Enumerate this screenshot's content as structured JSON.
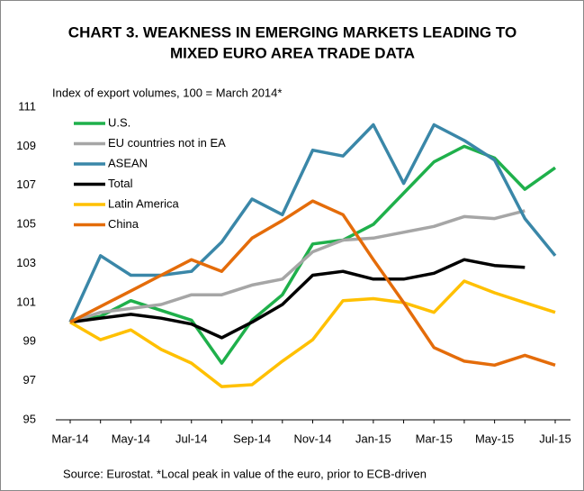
{
  "chart_data": {
    "type": "line",
    "title": [
      "CHART 3. WEAKNESS IN EMERGING MARKETS LEADING TO",
      "MIXED EURO AREA TRADE DATA"
    ],
    "subtitle": "Index of export volumes, 100 = March 2014*",
    "source": "Source: Eurostat. *Local peak in value of the euro, prior to ECB-driven",
    "categories": [
      "Mar-14",
      null,
      "May-14",
      null,
      "Jul-14",
      null,
      "Sep-14",
      null,
      "Nov-14",
      null,
      "Jan-15",
      null,
      "Mar-15",
      null,
      "May-15",
      null,
      "Jul-15"
    ],
    "ylim": [
      95,
      111
    ],
    "yticks": [
      95,
      97,
      99,
      101,
      103,
      105,
      107,
      109,
      111
    ],
    "legend": "top-left",
    "series": [
      {
        "name": "U.S.",
        "color": "#1fb04b",
        "values": [
          100,
          100.3,
          101.1,
          100.6,
          100.1,
          97.9,
          100.1,
          101.4,
          104.0,
          104.2,
          105.0,
          106.6,
          108.2,
          109.0,
          108.4,
          106.8,
          107.9
        ]
      },
      {
        "name": "EU countries not in EA",
        "color": "#a6a6a6",
        "values": [
          100,
          100.5,
          100.7,
          100.9,
          101.4,
          101.4,
          101.9,
          102.2,
          103.6,
          104.2,
          104.3,
          104.6,
          104.9,
          105.4,
          105.3,
          105.7,
          null
        ]
      },
      {
        "name": "ASEAN",
        "color": "#3a87a8",
        "values": [
          100,
          103.4,
          102.4,
          102.4,
          102.6,
          104.1,
          106.3,
          105.5,
          108.8,
          108.5,
          110.1,
          107.1,
          110.1,
          109.3,
          108.3,
          105.3,
          103.4
        ]
      },
      {
        "name": "Total",
        "color": "#000000",
        "values": [
          100,
          100.2,
          100.4,
          100.2,
          99.9,
          99.2,
          100.0,
          100.9,
          102.4,
          102.6,
          102.2,
          102.2,
          102.5,
          103.2,
          102.9,
          102.8,
          null
        ]
      },
      {
        "name": "Latin America",
        "color": "#ffc000",
        "values": [
          100,
          99.1,
          99.6,
          98.6,
          97.9,
          96.7,
          96.8,
          98.0,
          99.1,
          101.1,
          101.2,
          101.0,
          100.5,
          102.1,
          101.5,
          101.0,
          100.5
        ]
      },
      {
        "name": "China",
        "color": "#e46c0a",
        "values": [
          100,
          100.8,
          101.6,
          102.4,
          103.2,
          102.6,
          104.3,
          105.2,
          106.2,
          105.5,
          103.2,
          101.0,
          98.7,
          98.0,
          97.8,
          98.3,
          97.8
        ]
      }
    ]
  }
}
